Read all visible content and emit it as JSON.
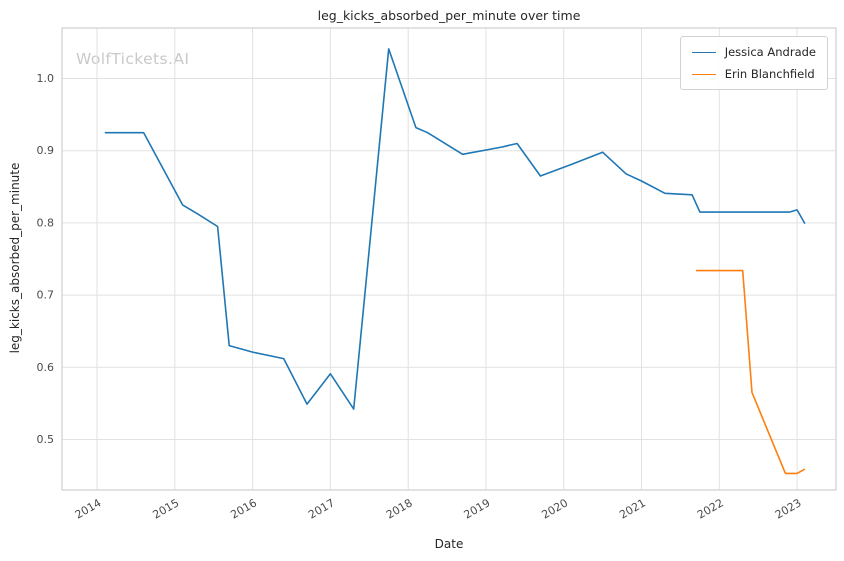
{
  "watermark": "WolfTickets.AI",
  "chart_data": {
    "type": "line",
    "title": "leg_kicks_absorbed_per_minute over time",
    "xlabel": "Date",
    "ylabel": "leg_kicks_absorbed_per_minute",
    "x_ticks": [
      2014,
      2015,
      2016,
      2017,
      2018,
      2019,
      2020,
      2021,
      2022,
      2023
    ],
    "y_ticks": [
      0.5,
      0.6,
      0.7,
      0.8,
      0.9,
      1.0
    ],
    "xlim": [
      2013.55,
      2023.5
    ],
    "ylim": [
      0.43,
      1.07
    ],
    "grid": true,
    "legend_position": "upper right",
    "series": [
      {
        "name": "Jessica Andrade",
        "color": "#1f77b4",
        "points": [
          [
            2014.1,
            0.925
          ],
          [
            2014.6,
            0.925
          ],
          [
            2015.1,
            0.825
          ],
          [
            2015.3,
            0.812
          ],
          [
            2015.55,
            0.795
          ],
          [
            2015.7,
            0.63
          ],
          [
            2016.0,
            0.621
          ],
          [
            2016.4,
            0.612
          ],
          [
            2016.7,
            0.549
          ],
          [
            2017.0,
            0.591
          ],
          [
            2017.3,
            0.542
          ],
          [
            2017.75,
            1.041
          ],
          [
            2018.1,
            0.932
          ],
          [
            2018.25,
            0.925
          ],
          [
            2018.7,
            0.895
          ],
          [
            2019.2,
            0.905
          ],
          [
            2019.4,
            0.91
          ],
          [
            2019.7,
            0.865
          ],
          [
            2020.1,
            0.881
          ],
          [
            2020.5,
            0.898
          ],
          [
            2020.8,
            0.868
          ],
          [
            2021.0,
            0.858
          ],
          [
            2021.3,
            0.841
          ],
          [
            2021.65,
            0.839
          ],
          [
            2021.75,
            0.815
          ],
          [
            2022.9,
            0.815
          ],
          [
            2023.0,
            0.818
          ],
          [
            2023.1,
            0.799
          ]
        ]
      },
      {
        "name": "Erin Blanchfield",
        "color": "#ff7f0e",
        "points": [
          [
            2021.7,
            0.734
          ],
          [
            2022.3,
            0.734
          ],
          [
            2022.42,
            0.565
          ],
          [
            2022.85,
            0.453
          ],
          [
            2023.0,
            0.453
          ],
          [
            2023.1,
            0.459
          ]
        ]
      }
    ]
  }
}
